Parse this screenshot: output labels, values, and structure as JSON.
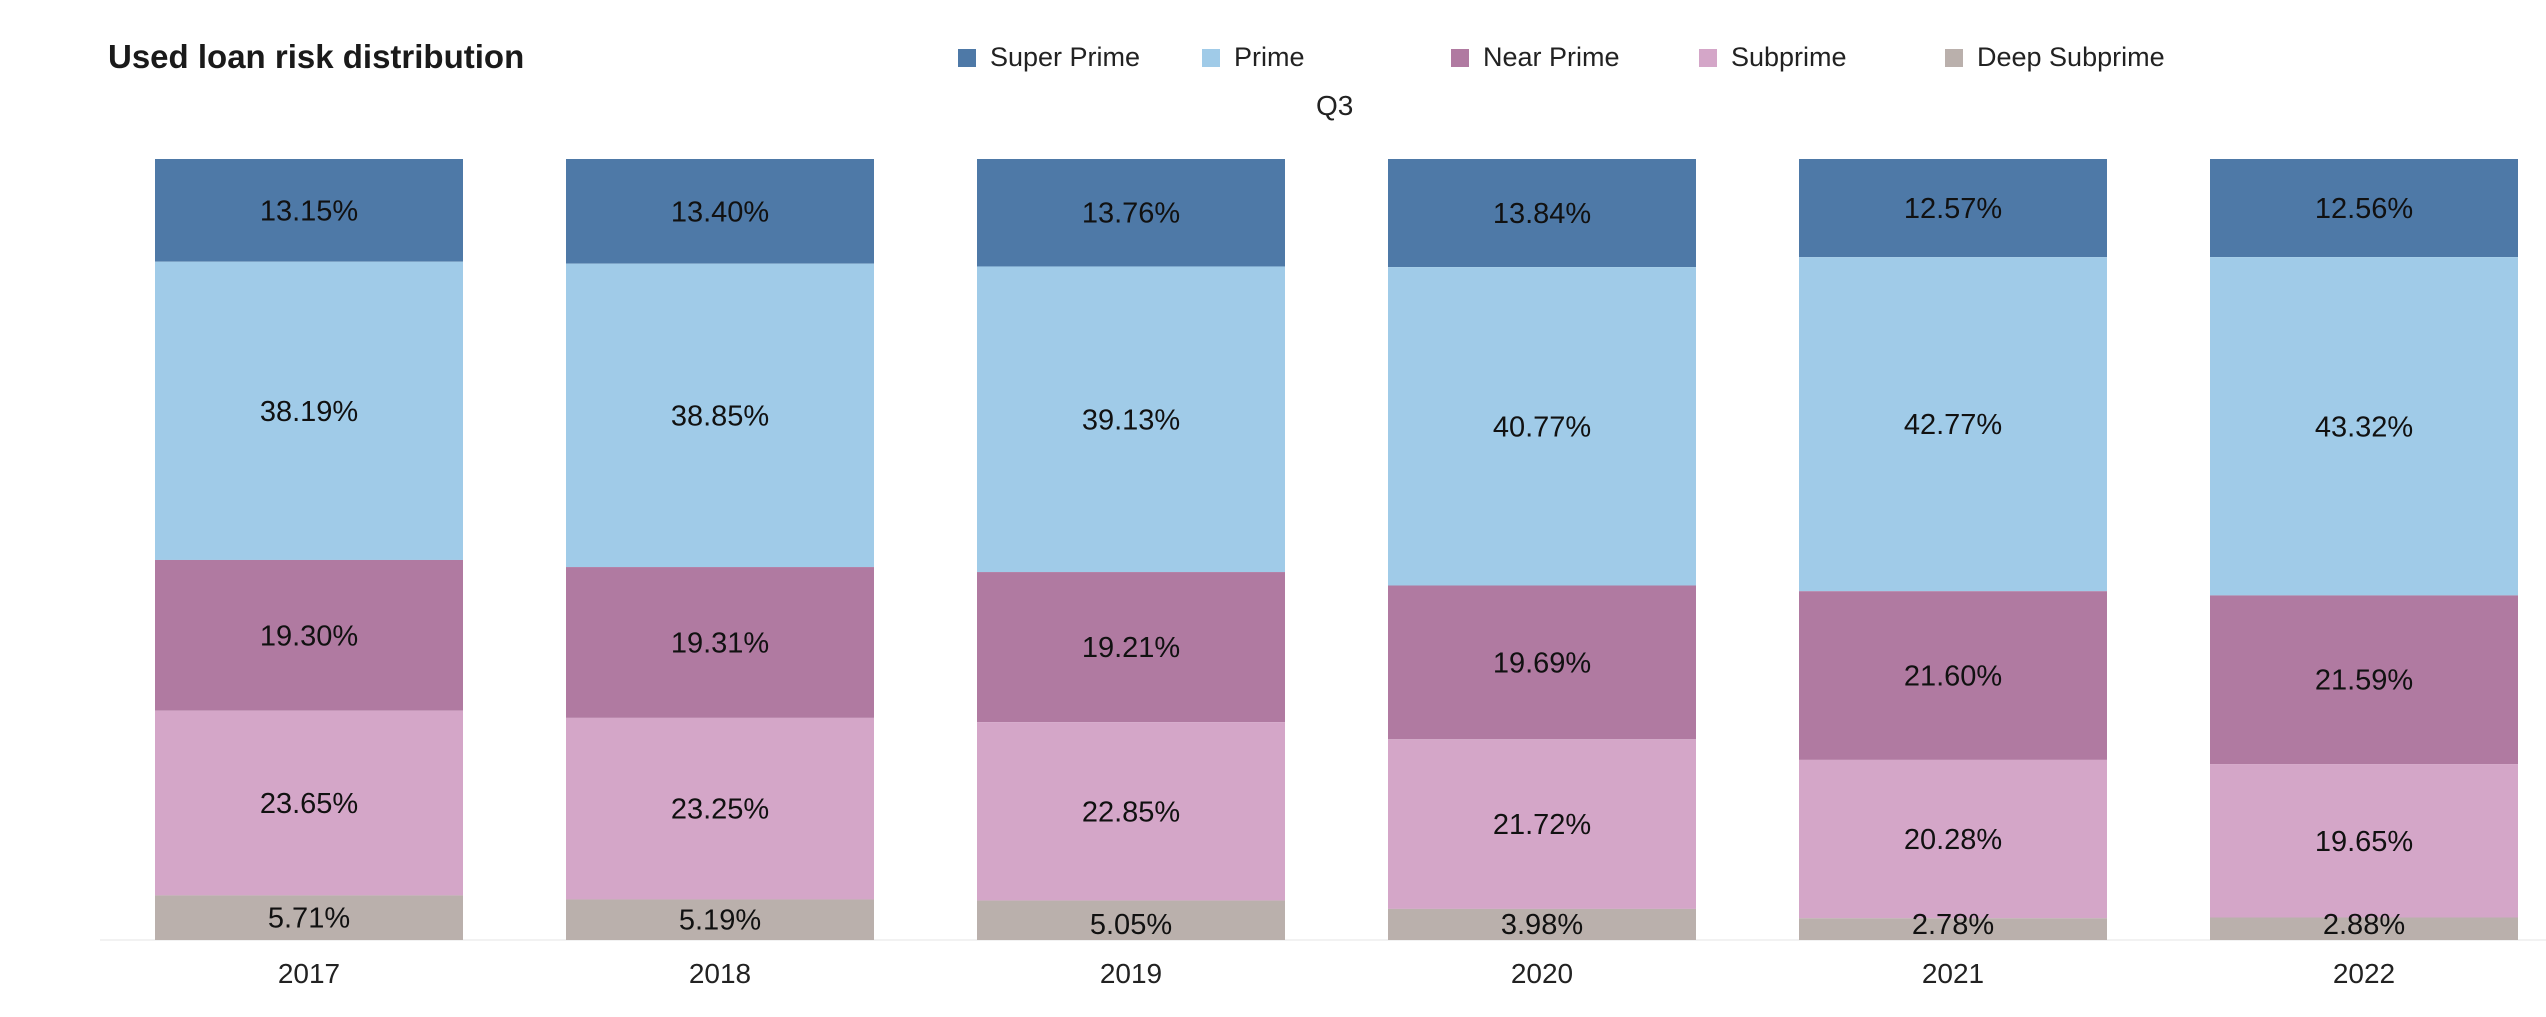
{
  "title": "Used loan risk distribution",
  "subtitle": "Q3",
  "legend": [
    {
      "name": "Super Prime",
      "color": "#4e79a7"
    },
    {
      "name": "Prime",
      "color": "#a0cbe8"
    },
    {
      "name": "Near Prime",
      "color": "#b07aa1"
    },
    {
      "name": "Subprime",
      "color": "#d4a6c8"
    },
    {
      "name": "Deep Subprime",
      "color": "#bab0ac"
    }
  ],
  "chart_data": {
    "type": "bar",
    "stacked": true,
    "normalized": true,
    "title": "Used loan risk distribution",
    "subtitle": "Q3",
    "categories": [
      "2017",
      "2018",
      "2019",
      "2020",
      "2021",
      "2022"
    ],
    "series": [
      {
        "name": "Super Prime",
        "color": "#4e79a7",
        "values": [
          13.15,
          13.4,
          13.76,
          13.84,
          12.57,
          12.56
        ],
        "labels": [
          "13.15%",
          "13.40%",
          "13.76%",
          "13.84%",
          "12.57%",
          "12.56%"
        ]
      },
      {
        "name": "Prime",
        "color": "#a0cbe8",
        "values": [
          38.19,
          38.85,
          39.13,
          40.77,
          42.77,
          43.32
        ],
        "labels": [
          "38.19%",
          "38.85%",
          "39.13%",
          "40.77%",
          "42.77%",
          "43.32%"
        ]
      },
      {
        "name": "Near Prime",
        "color": "#b07aa1",
        "values": [
          19.3,
          19.31,
          19.21,
          19.69,
          21.6,
          21.59
        ],
        "labels": [
          "19.30%",
          "19.31%",
          "19.21%",
          "19.69%",
          "21.60%",
          "21.59%"
        ]
      },
      {
        "name": "Subprime",
        "color": "#d4a6c8",
        "values": [
          23.65,
          23.25,
          22.85,
          21.72,
          20.28,
          19.65
        ],
        "labels": [
          "23.65%",
          "23.25%",
          "22.85%",
          "21.72%",
          "20.28%",
          "19.65%"
        ]
      },
      {
        "name": "Deep Subprime",
        "color": "#bab0ac",
        "values": [
          5.71,
          5.19,
          5.05,
          3.98,
          2.78,
          2.88
        ],
        "labels": [
          "5.71%",
          "5.19%",
          "5.05%",
          "3.98%",
          "2.78%",
          "2.88%"
        ]
      }
    ],
    "xlabel": "",
    "ylabel": "",
    "legend_position": "top"
  }
}
